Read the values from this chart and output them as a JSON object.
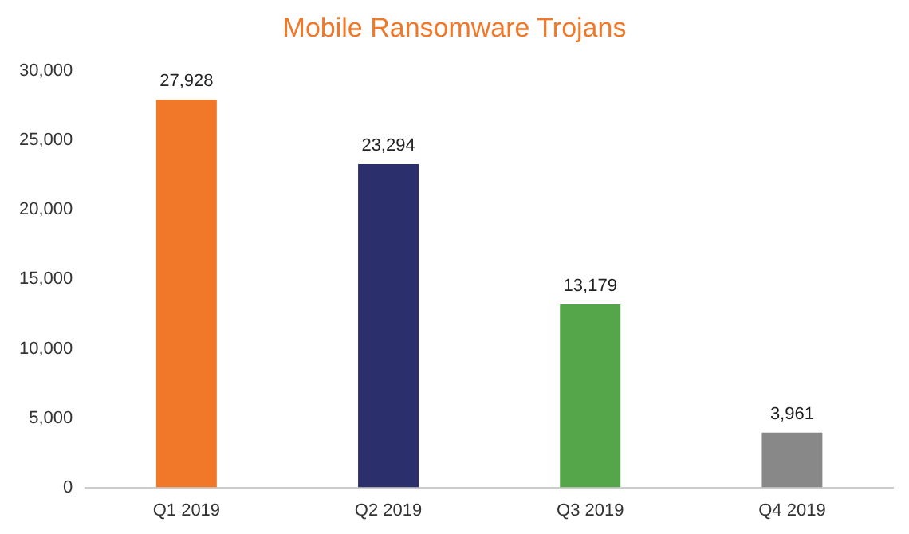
{
  "chart_data": {
    "type": "bar",
    "title": "Mobile Ransomware Trojans",
    "categories": [
      "Q1 2019",
      "Q2 2019",
      "Q3 2019",
      "Q4 2019"
    ],
    "values": [
      27928,
      23294,
      13179,
      3961
    ],
    "value_labels": [
      "27,928",
      "23,294",
      "13,179",
      "3,961"
    ],
    "colors": [
      "#f07828",
      "#2b2f6b",
      "#55a64a",
      "#888888"
    ],
    "ylim": [
      0,
      30000
    ],
    "yticks": [
      0,
      {
        "value": 5000,
        "label": "5,000"
      },
      {
        "value": 10000,
        "label": "10,000"
      },
      {
        "value": 15000,
        "label": "15,000"
      },
      {
        "value": 20000,
        "label": "20,000"
      },
      {
        "value": 25000,
        "label": "25,000"
      },
      {
        "value": 30000,
        "label": "30,000"
      }
    ],
    "grid": false,
    "legend": false
  }
}
